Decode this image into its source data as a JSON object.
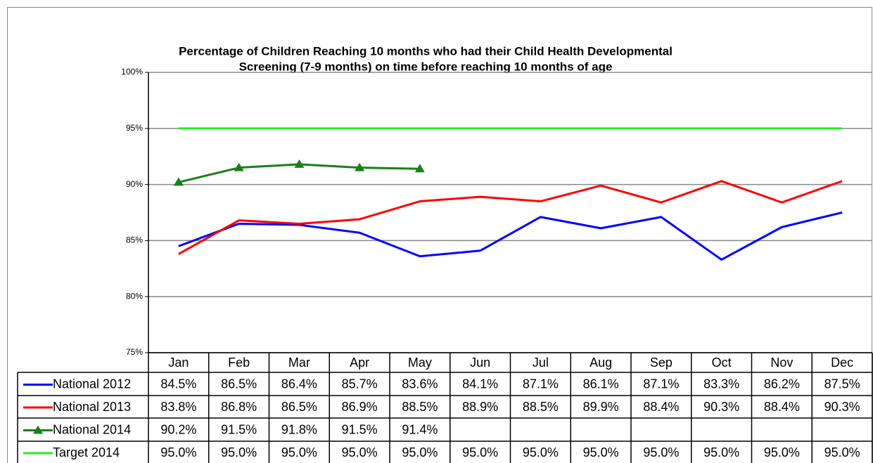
{
  "chart_data": {
    "type": "line",
    "title": [
      "Percentage of Children Reaching 10 months who had their Child Health Developmental",
      "Screening (7-9 months) on time before reaching 10 months of age"
    ],
    "categories": [
      "Jan",
      "Feb",
      "Mar",
      "Apr",
      "May",
      "Jun",
      "Jul",
      "Aug",
      "Sep",
      "Oct",
      "Nov",
      "Dec"
    ],
    "ylim": [
      75,
      100
    ],
    "yticks": [
      {
        "value": 75,
        "label": "75%"
      },
      {
        "value": 80,
        "label": "80%"
      },
      {
        "value": 85,
        "label": "85%"
      },
      {
        "value": 90,
        "label": "90%"
      },
      {
        "value": 95,
        "label": "95%"
      },
      {
        "value": 100,
        "label": "100%"
      }
    ],
    "grid": true,
    "series": [
      {
        "name": "National 2012",
        "color": "#0000ff",
        "marker": null,
        "values": [
          84.5,
          86.5,
          86.4,
          85.7,
          83.6,
          84.1,
          87.1,
          86.1,
          87.1,
          83.3,
          86.2,
          87.5
        ],
        "value_labels": [
          "84.5%",
          "86.5%",
          "86.4%",
          "85.7%",
          "83.6%",
          "84.1%",
          "87.1%",
          "86.1%",
          "87.1%",
          "83.3%",
          "86.2%",
          "87.5%"
        ]
      },
      {
        "name": "National 2013",
        "color": "#ff0000",
        "marker": null,
        "values": [
          83.8,
          86.8,
          86.5,
          86.9,
          88.5,
          88.9,
          88.5,
          89.9,
          88.4,
          90.3,
          88.4,
          90.3
        ],
        "value_labels": [
          "83.8%",
          "86.8%",
          "86.5%",
          "86.9%",
          "88.5%",
          "88.9%",
          "88.5%",
          "89.9%",
          "88.4%",
          "90.3%",
          "88.4%",
          "90.3%"
        ]
      },
      {
        "name": "National 2014",
        "color": "#1a7f1a",
        "marker": "triangle",
        "values": [
          90.2,
          91.5,
          91.8,
          91.5,
          91.4,
          null,
          null,
          null,
          null,
          null,
          null,
          null
        ],
        "value_labels": [
          "90.2%",
          "91.5%",
          "91.8%",
          "91.5%",
          "91.4%",
          null,
          null,
          null,
          null,
          null,
          null,
          null
        ]
      },
      {
        "name": "Target 2014",
        "color": "#22ee22",
        "marker": null,
        "values": [
          95,
          95,
          95,
          95,
          95,
          95,
          95,
          95,
          95,
          95,
          95,
          95
        ],
        "value_labels": [
          "95.0%",
          "95.0%",
          "95.0%",
          "95.0%",
          "95.0%",
          "95.0%",
          "95.0%",
          "95.0%",
          "95.0%",
          "95.0%",
          "95.0%",
          "95.0%"
        ]
      }
    ]
  }
}
